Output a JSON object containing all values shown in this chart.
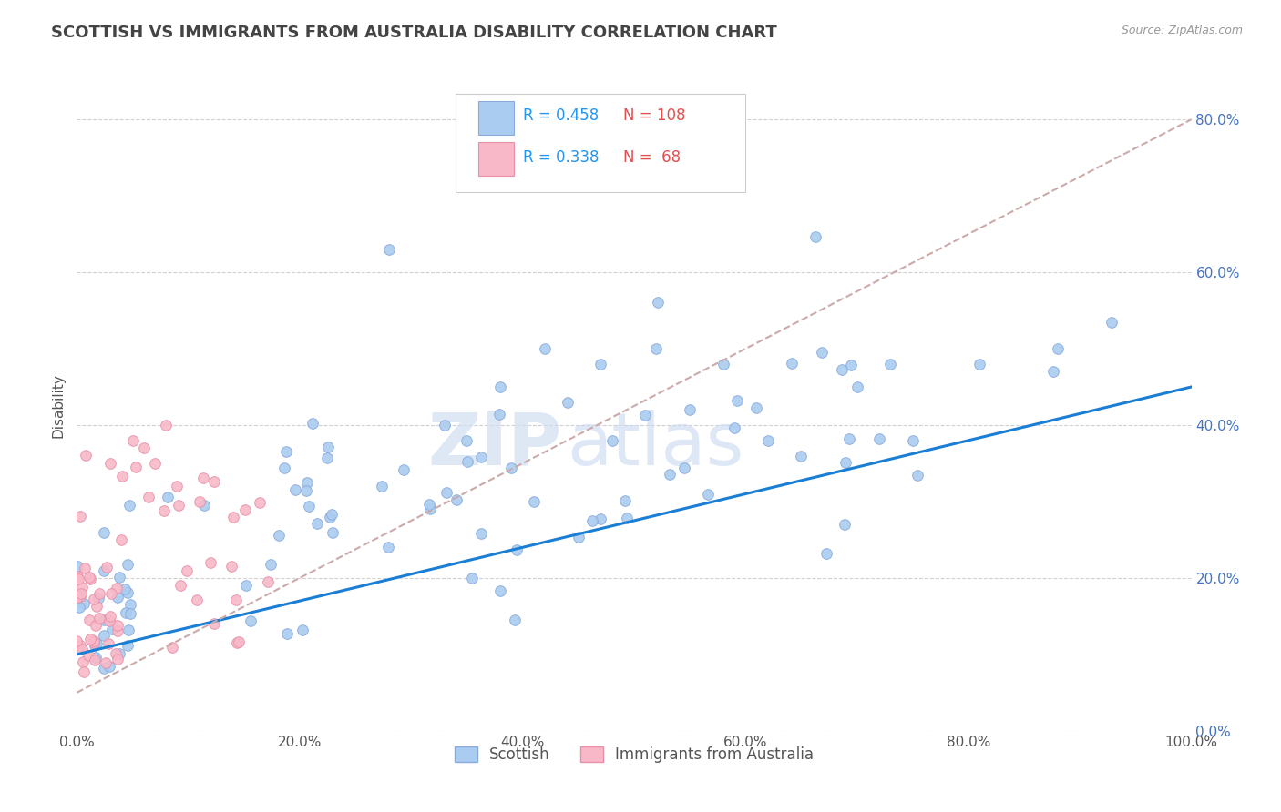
{
  "title": "SCOTTISH VS IMMIGRANTS FROM AUSTRALIA DISABILITY CORRELATION CHART",
  "source": "Source: ZipAtlas.com",
  "xlabel": "",
  "ylabel": "Disability",
  "xlim": [
    0,
    100
  ],
  "ylim": [
    0,
    85
  ],
  "yticks": [
    0,
    20,
    40,
    60,
    80
  ],
  "xticks": [
    0,
    20,
    40,
    60,
    80,
    100
  ],
  "background_color": "#ffffff",
  "grid_color": "#cccccc",
  "series": [
    {
      "name": "Scottish",
      "color": "#aaccf0",
      "edge_color": "#88aadd",
      "R": 0.458,
      "N": 108,
      "trend_color": "#1a7fd4",
      "trend_style": "solid",
      "trend_lw": 2.2
    },
    {
      "name": "Immigrants from Australia",
      "color": "#f8b8c8",
      "edge_color": "#e890a8",
      "R": 0.338,
      "N": 68,
      "trend_color": "#ccaaaa",
      "trend_style": "dashed",
      "trend_lw": 1.5
    }
  ],
  "legend_r_color": "#2196F3",
  "legend_n_color": "#e05050",
  "watermark_zip": "ZIP",
  "watermark_atlas": "atlas",
  "title_color": "#444444",
  "title_fontsize": 13,
  "axis_label_color": "#555555",
  "tick_color": "#555555",
  "right_tick_color": "#4472C4"
}
